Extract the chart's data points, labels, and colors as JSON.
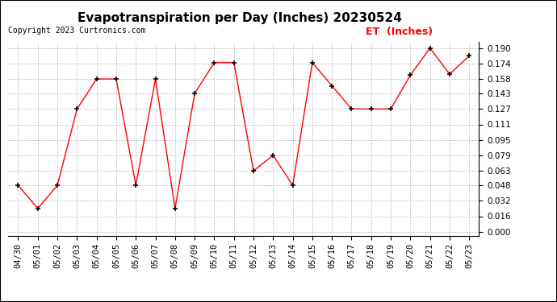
{
  "title": "Evapotranspiration per Day (Inches) 20230524",
  "copyright": "Copyright 2023 Curtronics.com",
  "legend_label": "ET  (Inches)",
  "dates": [
    "04/30",
    "05/01",
    "05/02",
    "05/03",
    "05/04",
    "05/05",
    "05/06",
    "05/07",
    "05/08",
    "05/09",
    "05/10",
    "05/11",
    "05/12",
    "05/13",
    "05/14",
    "05/15",
    "05/16",
    "05/17",
    "05/18",
    "05/19",
    "05/20",
    "05/21",
    "05/22",
    "05/23"
  ],
  "values": [
    0.048,
    0.024,
    0.048,
    0.127,
    0.158,
    0.158,
    0.048,
    0.158,
    0.024,
    0.143,
    0.175,
    0.175,
    0.063,
    0.079,
    0.048,
    0.175,
    0.151,
    0.127,
    0.127,
    0.127,
    0.162,
    0.19,
    0.163,
    0.182
  ],
  "line_color": "red",
  "marker_color": "black",
  "marker_style": "+",
  "background_color": "white",
  "grid_color": "#bbbbbb",
  "ylim_min": 0.0,
  "ylim_max": 0.19,
  "yticks": [
    0.0,
    0.016,
    0.032,
    0.048,
    0.063,
    0.079,
    0.095,
    0.111,
    0.127,
    0.143,
    0.158,
    0.174,
    0.19
  ],
  "title_fontsize": 11,
  "copyright_fontsize": 7,
  "legend_fontsize": 9,
  "tick_fontsize": 7.5
}
